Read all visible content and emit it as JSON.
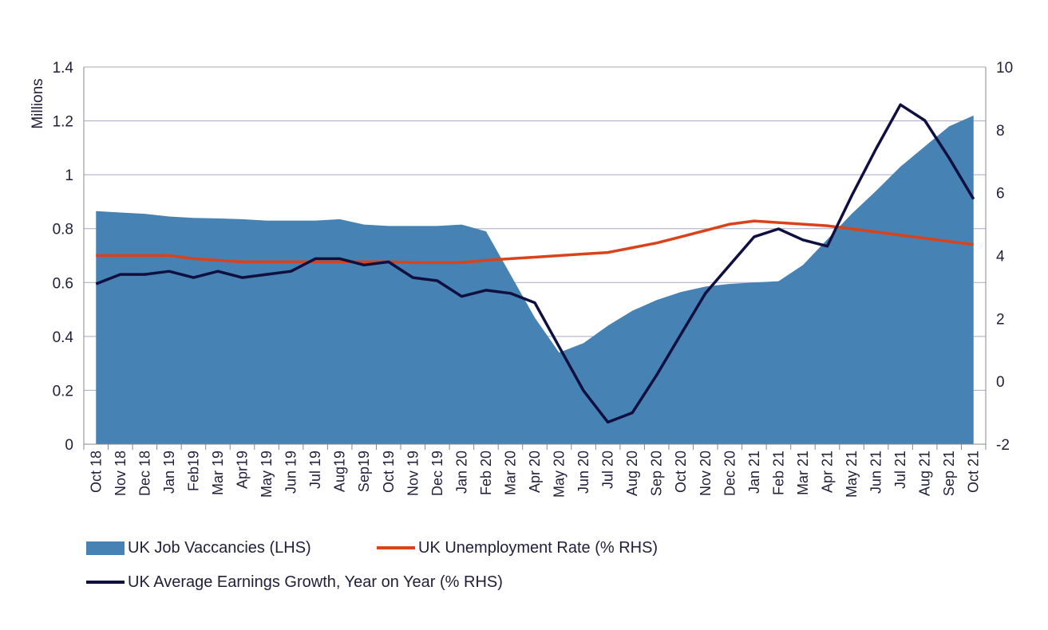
{
  "colors": {
    "area": "#4682b4",
    "unemployment": "#d9421a",
    "earnings": "#101040",
    "grid": "#a9a9c4"
  },
  "chart_data": {
    "type": "area",
    "ylabel_left": "Millions",
    "left_axis": {
      "min": 0,
      "max": 1.4,
      "ticks": [
        "0",
        "0.2",
        "0.4",
        "0.6",
        "0.8",
        "1",
        "1.2",
        "1.4"
      ],
      "tick_values": [
        0,
        0.2,
        0.4,
        0.6,
        0.8,
        1.0,
        1.2,
        1.4
      ]
    },
    "right_axis": {
      "min": -2,
      "max": 10,
      "ticks": [
        "-2",
        "0",
        "2",
        "4",
        "6",
        "8",
        "10"
      ],
      "tick_values": [
        -2,
        0,
        2,
        4,
        6,
        8,
        10
      ]
    },
    "grid": true,
    "legend_position": "bottom",
    "categories": [
      "Oct 18",
      "Nov 18",
      "Dec 18",
      "Jan 19",
      "Feb19",
      "Mar 19",
      "Apr19",
      "May 19",
      "Jun 19",
      "Jul 19",
      "Aug19",
      "Sep19",
      "Oct 19",
      "Nov 19",
      "Dec 19",
      "Jan 20",
      "Feb 20",
      "Mar 20",
      "Apr 20",
      "May 20",
      "Jun 20",
      "Jul 20",
      "Aug 20",
      "Sep 20",
      "Oct 20",
      "Nov 20",
      "Dec 20",
      "Jan 21",
      "Feb 21",
      "Mar 21",
      "Apr 21",
      "May 21",
      "Jun 21",
      "Jul 21",
      "Aug 21",
      "Sep 21",
      "Oct 21"
    ],
    "series": [
      {
        "name": "UK Job Vaccancies (LHS)",
        "kind": "area",
        "axis": "left",
        "values": [
          0.865,
          0.86,
          0.855,
          0.845,
          0.84,
          0.838,
          0.835,
          0.83,
          0.83,
          0.83,
          0.835,
          0.815,
          0.81,
          0.81,
          0.81,
          0.815,
          0.79,
          0.63,
          0.47,
          0.34,
          0.375,
          0.44,
          0.495,
          0.535,
          0.565,
          0.585,
          0.595,
          0.6,
          0.605,
          0.665,
          0.76,
          0.855,
          0.94,
          1.03,
          1.105,
          1.18,
          1.22
        ]
      },
      {
        "name": "UK Unemployment Rate (% RHS)",
        "kind": "line",
        "axis": "right",
        "values": [
          4.0,
          4.0,
          4.0,
          4.0,
          3.9,
          3.85,
          3.8,
          3.8,
          3.8,
          3.8,
          3.8,
          3.8,
          3.8,
          3.78,
          3.78,
          3.78,
          3.85,
          3.9,
          3.95,
          4.0,
          4.05,
          4.1,
          4.25,
          4.4,
          4.6,
          4.8,
          5.0,
          5.1,
          5.05,
          5.0,
          4.95,
          4.85,
          4.75,
          4.65,
          4.55,
          4.45,
          4.35
        ]
      },
      {
        "name": "UK Average Earnings Growth, Year on Year (% RHS)",
        "kind": "line",
        "axis": "right",
        "values": [
          3.1,
          3.4,
          3.4,
          3.5,
          3.3,
          3.5,
          3.3,
          3.4,
          3.5,
          3.9,
          3.9,
          3.7,
          3.8,
          3.3,
          3.2,
          2.7,
          2.9,
          2.8,
          2.5,
          1.1,
          -0.3,
          -1.3,
          -1.0,
          0.2,
          1.5,
          2.8,
          3.7,
          4.6,
          4.85,
          4.5,
          4.3,
          5.9,
          7.4,
          8.8,
          8.3,
          7.1,
          5.8
        ]
      }
    ]
  }
}
